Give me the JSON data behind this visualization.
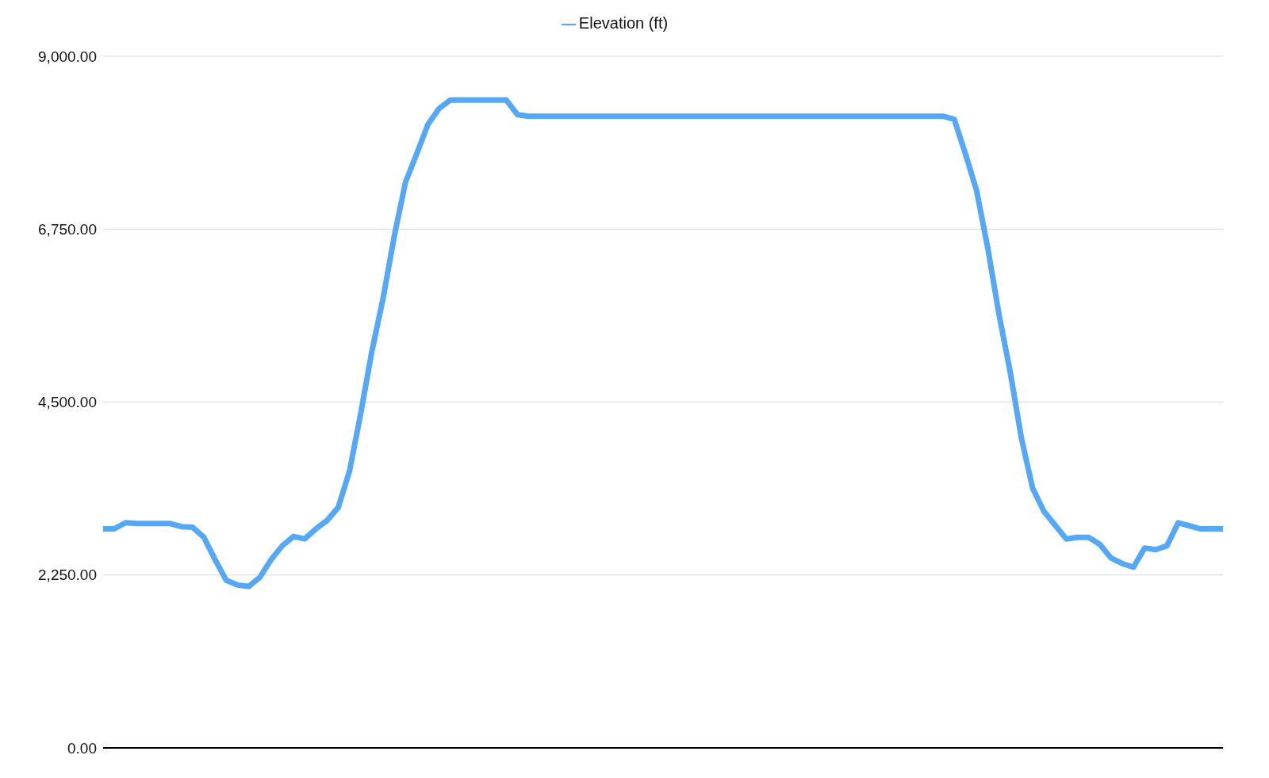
{
  "chart_data": {
    "type": "line",
    "categories": [
      null,
      null,
      null,
      null,
      null,
      null,
      null,
      null,
      null,
      null,
      null,
      null,
      null,
      null,
      null,
      null,
      null,
      null,
      null,
      null,
      null,
      null,
      null,
      null,
      null,
      null,
      null,
      null,
      null,
      null,
      null,
      null,
      null,
      null,
      null,
      null,
      null,
      null,
      null,
      null,
      null,
      null,
      null,
      null,
      null,
      null,
      null,
      null,
      null,
      null,
      null,
      null,
      null,
      null,
      null,
      null,
      null,
      null,
      null,
      null,
      null,
      null,
      null,
      null,
      null,
      null,
      null,
      null,
      null,
      null,
      null,
      null,
      null,
      null,
      null,
      null,
      null,
      null,
      null,
      null,
      null,
      null,
      null,
      null,
      null,
      null,
      null,
      null,
      null,
      null,
      null,
      null,
      null,
      null,
      null,
      null,
      null,
      null,
      null,
      null,
      null
    ],
    "series": [
      {
        "name": "Elevation (ft)",
        "color": "#55a8f5",
        "values": [
          2850,
          2850,
          2930,
          2920,
          2920,
          2920,
          2920,
          2880,
          2870,
          2740,
          2450,
          2180,
          2120,
          2100,
          2220,
          2450,
          2630,
          2750,
          2720,
          2850,
          2960,
          3130,
          3600,
          4350,
          5160,
          5850,
          6660,
          7360,
          7730,
          8110,
          8320,
          8430,
          8430,
          8430,
          8430,
          8430,
          8430,
          8240,
          8220,
          8220,
          8220,
          8220,
          8220,
          8220,
          8220,
          8220,
          8220,
          8220,
          8220,
          8220,
          8220,
          8220,
          8220,
          8220,
          8220,
          8220,
          8220,
          8220,
          8220,
          8220,
          8220,
          8220,
          8220,
          8220,
          8220,
          8220,
          8220,
          8220,
          8220,
          8220,
          8220,
          8220,
          8220,
          8220,
          8220,
          8220,
          8180,
          7730,
          7250,
          6500,
          5640,
          4890,
          4030,
          3380,
          3080,
          2900,
          2720,
          2740,
          2740,
          2650,
          2470,
          2400,
          2350,
          2600,
          2580,
          2630,
          2930,
          2890,
          2850,
          2850,
          2850
        ]
      }
    ],
    "ylim": [
      0,
      9000
    ],
    "yticks": [
      {
        "value": 0,
        "label": "0.00"
      },
      {
        "value": 2250,
        "label": "2,250.00"
      },
      {
        "value": 4500,
        "label": "4,500.00"
      },
      {
        "value": 6750,
        "label": "6,750.00"
      },
      {
        "value": 9000,
        "label": "9,000.00"
      }
    ],
    "grid": "y",
    "legend": "top",
    "tick_labels": "y",
    "marker": "none",
    "line_style": "solid"
  }
}
